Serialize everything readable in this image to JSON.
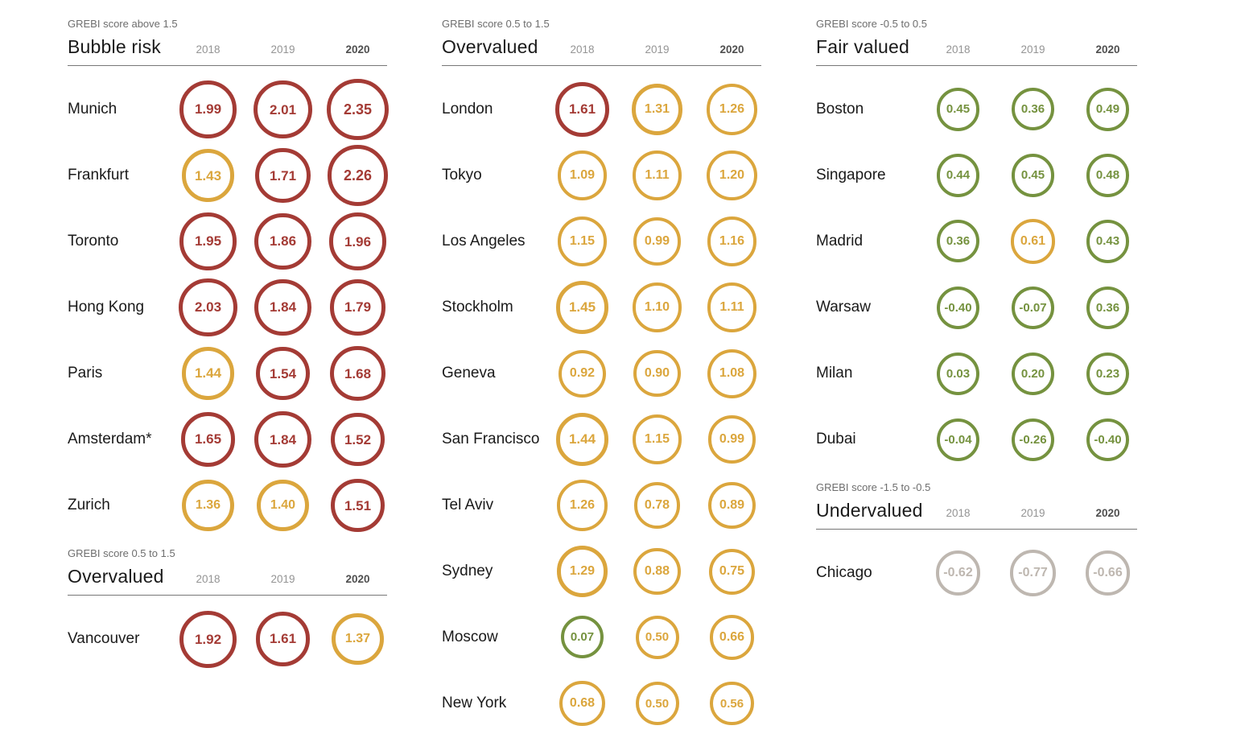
{
  "chart_data": {
    "type": "table",
    "years": [
      "2018",
      "2019",
      "2020"
    ],
    "current_year": "2020",
    "palette": {
      "bubble_risk": "#a43b35",
      "overvalued": "#dba63d",
      "fair_valued": "#75923f",
      "undervalued": "#beb7b0"
    },
    "color_thresholds": [
      {
        "min": 1.5,
        "key": "bubble_risk"
      },
      {
        "min": 0.5,
        "key": "overvalued"
      },
      {
        "min": -0.5,
        "key": "fair_valued"
      },
      {
        "min": -1.5,
        "key": "undervalued"
      }
    ],
    "columns": [
      {
        "sections": [
          {
            "label": "GREBI score above 1.5",
            "title": "Bubble risk",
            "rows": [
              {
                "city": "Munich",
                "values": [
                  "1.99",
                  "2.01",
                  "2.35"
                ]
              },
              {
                "city": "Frankfurt",
                "values": [
                  "1.43",
                  "1.71",
                  "2.26"
                ]
              },
              {
                "city": "Toronto",
                "values": [
                  "1.95",
                  "1.86",
                  "1.96"
                ]
              },
              {
                "city": "Hong Kong",
                "values": [
                  "2.03",
                  "1.84",
                  "1.79"
                ]
              },
              {
                "city": "Paris",
                "values": [
                  "1.44",
                  "1.54",
                  "1.68"
                ]
              },
              {
                "city": "Amsterdam*",
                "values": [
                  "1.65",
                  "1.84",
                  "1.52"
                ]
              },
              {
                "city": "Zurich",
                "values": [
                  "1.36",
                  "1.40",
                  "1.51"
                ]
              }
            ]
          },
          {
            "label": "GREBI score 0.5 to 1.5",
            "title": "Overvalued",
            "rows": [
              {
                "city": "Vancouver",
                "values": [
                  "1.92",
                  "1.61",
                  "1.37"
                ]
              }
            ]
          }
        ]
      },
      {
        "sections": [
          {
            "label": "GREBI score 0.5 to 1.5",
            "title": "Overvalued",
            "rows": [
              {
                "city": "London",
                "values": [
                  "1.61",
                  "1.31",
                  "1.26"
                ]
              },
              {
                "city": "Tokyo",
                "values": [
                  "1.09",
                  "1.11",
                  "1.20"
                ]
              },
              {
                "city": "Los Angeles",
                "values": [
                  "1.15",
                  "0.99",
                  "1.16"
                ]
              },
              {
                "city": "Stockholm",
                "values": [
                  "1.45",
                  "1.10",
                  "1.11"
                ]
              },
              {
                "city": "Geneva",
                "values": [
                  "0.92",
                  "0.90",
                  "1.08"
                ]
              },
              {
                "city": "San Francisco",
                "values": [
                  "1.44",
                  "1.15",
                  "0.99"
                ]
              },
              {
                "city": "Tel Aviv",
                "values": [
                  "1.26",
                  "0.78",
                  "0.89"
                ]
              },
              {
                "city": "Sydney",
                "values": [
                  "1.29",
                  "0.88",
                  "0.75"
                ]
              },
              {
                "city": "Moscow",
                "values": [
                  "0.07",
                  "0.50",
                  "0.66"
                ]
              },
              {
                "city": "New York",
                "values": [
                  "0.68",
                  "0.50",
                  "0.56"
                ]
              }
            ]
          }
        ]
      },
      {
        "sections": [
          {
            "label": "GREBI score -0.5 to 0.5",
            "title": "Fair valued",
            "rows": [
              {
                "city": "Boston",
                "values": [
                  "0.45",
                  "0.36",
                  "0.49"
                ]
              },
              {
                "city": "Singapore",
                "values": [
                  "0.44",
                  "0.45",
                  "0.48"
                ]
              },
              {
                "city": "Madrid",
                "values": [
                  "0.36",
                  "0.61",
                  "0.43"
                ]
              },
              {
                "city": "Warsaw",
                "values": [
                  "-0.40",
                  "-0.07",
                  "0.36"
                ]
              },
              {
                "city": "Milan",
                "values": [
                  "0.03",
                  "0.20",
                  "0.23"
                ]
              },
              {
                "city": "Dubai",
                "values": [
                  "-0.04",
                  "-0.26",
                  "-0.40"
                ]
              }
            ]
          },
          {
            "label": "GREBI score -1.5 to -0.5",
            "title": "Undervalued",
            "rows": [
              {
                "city": "Chicago",
                "values": [
                  "-0.62",
                  "-0.77",
                  "-0.66"
                ]
              }
            ]
          }
        ]
      }
    ]
  }
}
